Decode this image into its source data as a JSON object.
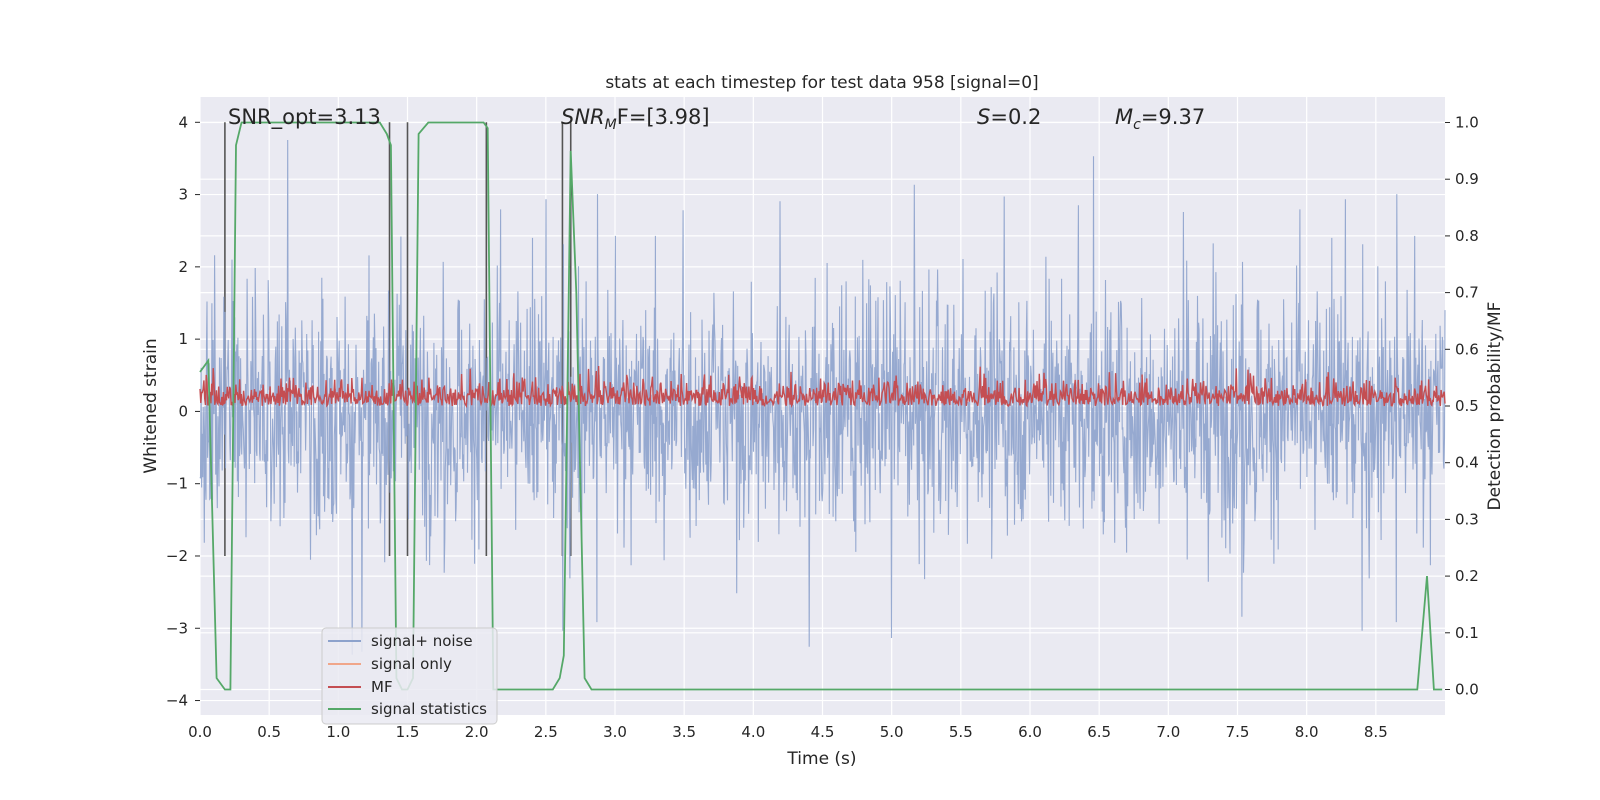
{
  "chart_data": {
    "type": "line",
    "title": "stats at each timestep for test data 958 [signal=0]",
    "xlabel": "Time (s)",
    "ylabel": "Whitened strain",
    "y2label": "Detection probability/MF",
    "xlim": [
      0.0,
      9.0
    ],
    "ylim": [
      -4.2,
      4.35
    ],
    "y2lim": [
      -0.045,
      1.045
    ],
    "xticks": [
      "0.0",
      "0.5",
      "1.0",
      "1.5",
      "2.0",
      "2.5",
      "3.0",
      "3.5",
      "4.0",
      "4.5",
      "5.0",
      "5.5",
      "6.0",
      "6.5",
      "7.0",
      "7.5",
      "8.0",
      "8.5"
    ],
    "yticks": [
      "−4",
      "−3",
      "−2",
      "−1",
      "0",
      "1",
      "2",
      "3",
      "4"
    ],
    "y2ticks": [
      "0.0",
      "0.1",
      "0.2",
      "0.3",
      "0.4",
      "0.5",
      "0.6",
      "0.7",
      "0.8",
      "0.9",
      "1.0"
    ],
    "grid": true,
    "legend_position": "lower-left",
    "annotations": {
      "snr_opt": "SNR_opt=3.13",
      "snr_mf_sym": "SNR",
      "snr_mf_sub": "M",
      "snr_mf_rest": "F=[3.98]",
      "s_sym": "S",
      "s_rest": "=0.2",
      "mc_sym": "M",
      "mc_sub": "c",
      "mc_rest": "=9.37"
    },
    "series": [
      {
        "name": "signal+ noise",
        "color": "#8da2cc",
        "style": "dense noisy whitened strain, roughly ±2 with spikes to ±3.5"
      },
      {
        "name": "signal only",
        "color": "#f0a68a",
        "values": []
      },
      {
        "name": "MF",
        "color": "#c44e52",
        "style": "matched filter output on right axis, about 0.50–0.60"
      },
      {
        "name": "signal statistics",
        "color": "#55a868",
        "x": [
          0.0,
          0.06,
          0.12,
          0.18,
          0.22,
          0.26,
          0.3,
          1.3,
          1.35,
          1.38,
          1.42,
          1.46,
          1.5,
          1.54,
          1.58,
          1.65,
          2.05,
          2.08,
          2.12,
          2.5,
          2.55,
          2.6,
          2.63,
          2.68,
          2.72,
          2.78,
          2.83,
          2.9,
          3.0,
          8.8,
          8.87,
          8.92,
          8.98
        ],
        "values": [
          0.56,
          0.58,
          0.02,
          0.0,
          0.0,
          0.96,
          1.0,
          1.0,
          0.98,
          0.96,
          0.02,
          0.0,
          0.0,
          0.02,
          0.98,
          1.0,
          1.0,
          0.99,
          0.0,
          0.0,
          0.0,
          0.02,
          0.06,
          0.95,
          0.7,
          0.02,
          0.0,
          0.0,
          0.0,
          0.0,
          0.2,
          0.0,
          0.0
        ]
      }
    ],
    "vlines": [
      0.18,
      1.37,
      1.5,
      2.07,
      2.62,
      2.68
    ],
    "vline_color": "#555555"
  }
}
